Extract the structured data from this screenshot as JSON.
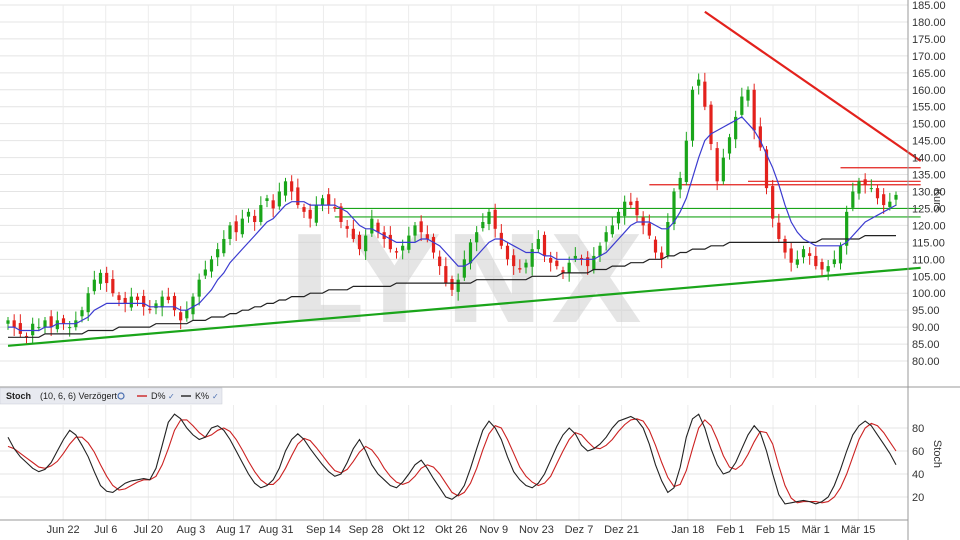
{
  "chart_data": {
    "type": "candlestick",
    "watermark": "LYNX",
    "price_panel": {
      "y_label": "Kurs",
      "ylim": [
        75,
        185
      ],
      "y_ticks": [
        "185.00",
        "180.00",
        "175.00",
        "170.00",
        "165.00",
        "160.00",
        "155.00",
        "150.00",
        "145.00",
        "140.00",
        "135.00",
        "130.00",
        "125.00",
        "120.00",
        "115.00",
        "110.00",
        "105.00",
        "100.00",
        "95.00",
        "90.00",
        "85.00",
        "80.00"
      ],
      "close_series": [
        92,
        90,
        88,
        87,
        91,
        90,
        92,
        90,
        92,
        91,
        90,
        92,
        95,
        100,
        104,
        106,
        103,
        100,
        98,
        97,
        99,
        98,
        96,
        95,
        97,
        99,
        98,
        95,
        92,
        95,
        99,
        104,
        107,
        110,
        113,
        116,
        120,
        118,
        122,
        124,
        121,
        126,
        128,
        125,
        130,
        133,
        130,
        126,
        124,
        122,
        126,
        128,
        126,
        125,
        121,
        119,
        116,
        113,
        117,
        122,
        118,
        116,
        113,
        112,
        114,
        117,
        120,
        118,
        116,
        112,
        108,
        103,
        101,
        104,
        110,
        115,
        118,
        121,
        124,
        119,
        114,
        110,
        108,
        107,
        109,
        113,
        116,
        111,
        109,
        108,
        106,
        109,
        111,
        110,
        108,
        111,
        114,
        118,
        120,
        124,
        127,
        126,
        123,
        120,
        117,
        112,
        110,
        121,
        130,
        134,
        145,
        160,
        163,
        155,
        144,
        133,
        140,
        146,
        152,
        158,
        160,
        148,
        143,
        131,
        122,
        116,
        112,
        109,
        110,
        113,
        111,
        108,
        107,
        108,
        110,
        114,
        124,
        130,
        133,
        132,
        131,
        128,
        126,
        127,
        129
      ],
      "sma_short": [
        90,
        90,
        89,
        89,
        89,
        89,
        90,
        90,
        91,
        91,
        91,
        91,
        92,
        93,
        95,
        96,
        97,
        97,
        97,
        97,
        97,
        97,
        97,
        96,
        96,
        96,
        96,
        96,
        95,
        95,
        96,
        97,
        99,
        101,
        104,
        106,
        109,
        111,
        113,
        115,
        117,
        119,
        121,
        122,
        124,
        126,
        127,
        127,
        127,
        126,
        126,
        126,
        126,
        126,
        125,
        124,
        122,
        120,
        119,
        119,
        118,
        117,
        116,
        115,
        115,
        115,
        115,
        116,
        116,
        115,
        114,
        112,
        110,
        108,
        108,
        109,
        111,
        113,
        115,
        116,
        116,
        115,
        114,
        113,
        112,
        112,
        112,
        111,
        111,
        110,
        110,
        110,
        110,
        110,
        110,
        110,
        111,
        112,
        114,
        116,
        118,
        120,
        121,
        121,
        121,
        120,
        119,
        119,
        121,
        124,
        128,
        134,
        140,
        145,
        147,
        148,
        149,
        150,
        151,
        152,
        150,
        148,
        145,
        141,
        137,
        132,
        126,
        121,
        118,
        116,
        115,
        114,
        114,
        114,
        114,
        114,
        115,
        117,
        119,
        121,
        122,
        123,
        124,
        125,
        126
      ],
      "sma_long": [
        87,
        87,
        87,
        87,
        87,
        87,
        88,
        88,
        88,
        88,
        88,
        88,
        88,
        89,
        89,
        89,
        89,
        89,
        90,
        90,
        90,
        90,
        90,
        90,
        91,
        91,
        91,
        91,
        91,
        91,
        92,
        92,
        92,
        93,
        93,
        93,
        94,
        94,
        95,
        95,
        96,
        96,
        97,
        97,
        98,
        98,
        99,
        99,
        99,
        100,
        100,
        100,
        101,
        101,
        101,
        101,
        102,
        102,
        102,
        102,
        102,
        102,
        102,
        103,
        103,
        103,
        103,
        103,
        103,
        103,
        103,
        103,
        103,
        103,
        103,
        103,
        104,
        104,
        104,
        104,
        104,
        104,
        104,
        104,
        104,
        105,
        105,
        105,
        105,
        105,
        106,
        106,
        106,
        106,
        106,
        107,
        107,
        107,
        108,
        108,
        108,
        109,
        109,
        109,
        110,
        110,
        110,
        111,
        111,
        112,
        112,
        113,
        113,
        113,
        114,
        114,
        114,
        115,
        115,
        115,
        115,
        115,
        115,
        115,
        115,
        115,
        115,
        115,
        115,
        115,
        115,
        115,
        116,
        116,
        116,
        116,
        116,
        116,
        116,
        117,
        117,
        117,
        117,
        117,
        117
      ],
      "trendlines": [
        {
          "name": "green-support",
          "color": "#1aa51a",
          "from": [
            0,
            84.5
          ],
          "to": [
            148,
            107.5
          ]
        },
        {
          "name": "red-resistance",
          "color": "#e3211c",
          "from": [
            113,
            183
          ],
          "to": [
            148,
            139
          ]
        },
        {
          "name": "green-h1",
          "color": "#1aa51a",
          "from": [
            53,
            125
          ],
          "to": [
            148,
            125
          ]
        },
        {
          "name": "green-h2",
          "color": "#1aa51a",
          "from": [
            53,
            122.5
          ],
          "to": [
            148,
            122.5
          ]
        },
        {
          "name": "red-h1",
          "color": "#e3211c",
          "from": [
            104,
            132
          ],
          "to": [
            148,
            132
          ]
        },
        {
          "name": "red-h2",
          "color": "#e3211c",
          "from": [
            120,
            133
          ],
          "to": [
            148,
            133
          ]
        },
        {
          "name": "red-h3",
          "color": "#e3211c",
          "from": [
            135,
            137
          ],
          "to": [
            148,
            137
          ]
        }
      ]
    },
    "stoch_panel": {
      "title": "Stoch",
      "params": "(10, 6, 6) Verzögert",
      "legend": [
        {
          "name": "D%",
          "color": "#cc2222"
        },
        {
          "name": "K%",
          "color": "#222222"
        }
      ],
      "y_label": "Stoch",
      "ylim": [
        0,
        100
      ],
      "y_ticks": [
        "80",
        "60",
        "40",
        "20"
      ],
      "k_series": [
        72,
        62,
        55,
        50,
        45,
        42,
        44,
        50,
        60,
        70,
        78,
        74,
        65,
        55,
        42,
        30,
        25,
        24,
        28,
        32,
        34,
        35,
        36,
        35,
        45,
        65,
        85,
        92,
        88,
        80,
        74,
        70,
        72,
        80,
        82,
        78,
        70,
        60,
        50,
        40,
        32,
        28,
        30,
        35,
        45,
        60,
        70,
        75,
        70,
        62,
        55,
        48,
        42,
        38,
        40,
        50,
        62,
        70,
        60,
        48,
        40,
        35,
        30,
        28,
        33,
        40,
        48,
        52,
        45,
        36,
        28,
        20,
        18,
        22,
        30,
        45,
        62,
        78,
        86,
        80,
        70,
        55,
        42,
        35,
        30,
        28,
        32,
        40,
        52,
        64,
        74,
        80,
        75,
        65,
        60,
        62,
        66,
        72,
        80,
        86,
        88,
        90,
        87,
        80,
        66,
        48,
        34,
        24,
        28,
        46,
        72,
        88,
        92,
        80,
        62,
        48,
        40,
        42,
        50,
        62,
        74,
        82,
        76,
        60,
        40,
        22,
        14,
        15,
        16,
        17,
        16,
        14,
        16,
        20,
        30,
        44,
        60,
        74,
        82,
        86,
        82,
        74,
        66,
        58,
        48
      ],
      "d_series": [
        64,
        62,
        58,
        54,
        50,
        46,
        45,
        47,
        51,
        58,
        66,
        72,
        72,
        67,
        59,
        48,
        38,
        30,
        26,
        27,
        30,
        33,
        35,
        35,
        38,
        48,
        62,
        78,
        87,
        87,
        82,
        76,
        72,
        74,
        78,
        80,
        77,
        70,
        61,
        51,
        42,
        35,
        31,
        31,
        36,
        45,
        56,
        66,
        71,
        69,
        63,
        56,
        49,
        43,
        41,
        44,
        51,
        59,
        64,
        61,
        54,
        45,
        38,
        33,
        31,
        33,
        38,
        45,
        48,
        46,
        40,
        32,
        24,
        21,
        24,
        32,
        45,
        61,
        75,
        82,
        80,
        70,
        58,
        46,
        38,
        33,
        30,
        32,
        38,
        49,
        60,
        70,
        76,
        74,
        68,
        63,
        62,
        65,
        70,
        77,
        83,
        87,
        88,
        86,
        78,
        65,
        50,
        37,
        29,
        31,
        43,
        62,
        80,
        87,
        82,
        70,
        56,
        46,
        44,
        48,
        57,
        68,
        77,
        76,
        66,
        47,
        30,
        19,
        15,
        16,
        16,
        16,
        15,
        16,
        20,
        28,
        40,
        55,
        70,
        80,
        84,
        82,
        76,
        68,
        60
      ],
      "bands": [
        80,
        20
      ]
    },
    "x_axis": {
      "labels": [
        "Jun 22",
        "Jul 6",
        "Jul 20",
        "Aug 3",
        "Aug 17",
        "Aug 31",
        "Sep 14",
        "Sep 28",
        "Okt 12",
        "Okt 26",
        "Nov 9",
        "Nov 23",
        "Dez 7",
        "Dez 21",
        "Jan 18",
        "Feb 1",
        "Feb 15",
        "Mär 1",
        "Mär 15"
      ],
      "label_positions": [
        7,
        16,
        25,
        34,
        43,
        52,
        62,
        71,
        80,
        89,
        98,
        107,
        116,
        125,
        139,
        148,
        157,
        166,
        175
      ]
    },
    "colors": {
      "up": "#1aa51a",
      "down": "#e3211c",
      "sma_short": "#3b3bd0",
      "sma_long": "#222222",
      "stoch_k": "#222222",
      "stoch_d": "#cc2222"
    }
  },
  "ui": {
    "stoch_title": "Stoch",
    "stoch_params": "(10, 6, 6) Verzögert",
    "stoch_legend_d": "D%",
    "stoch_legend_k": "K%",
    "kurs_label": "Kurs",
    "stoch_label": "Stoch",
    "watermark": "LYNX"
  }
}
